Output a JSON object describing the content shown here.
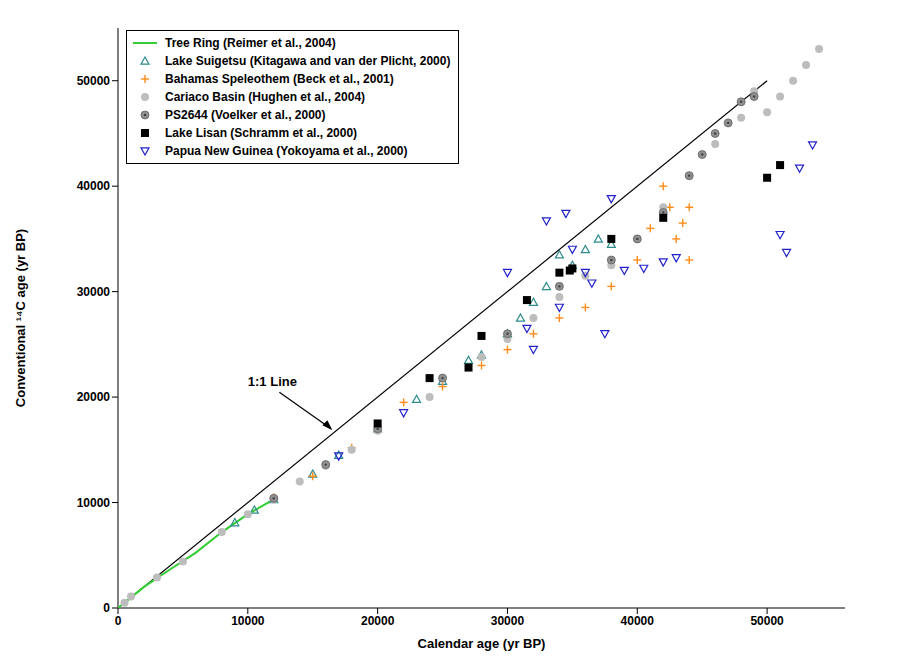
{
  "chart_data": {
    "type": "scatter",
    "x_label": "Calendar age (yr BP)",
    "y_label": "Conventional ¹⁴C age (yr BP)",
    "xlim": [
      0,
      56000
    ],
    "ylim": [
      0,
      55000
    ],
    "xticks": [
      0,
      10000,
      20000,
      30000,
      40000,
      50000
    ],
    "yticks": [
      0,
      10000,
      20000,
      30000,
      40000,
      50000
    ],
    "grid": false,
    "legend": "upper left",
    "reference_line": {
      "label": "1:1 Line",
      "x": [
        0,
        50000
      ],
      "y": [
        0,
        50000
      ],
      "color": "#000000"
    },
    "series": [
      {
        "name": "Tree Ring (Reimer et al., 2004)",
        "type": "line",
        "marker": "none",
        "color": "#33cc33",
        "x": [
          0,
          2000,
          4000,
          6000,
          8000,
          10000,
          12000
        ],
        "values": [
          0,
          2000,
          3650,
          5250,
          7200,
          8900,
          10300
        ]
      },
      {
        "name": "Lake Suigetsu (Kitagawa and van der Plicht, 2000)",
        "type": "scatter",
        "marker": "triangle",
        "color": "#2e8b8b",
        "x": [
          9000,
          10500,
          12000,
          15000,
          17000,
          20000,
          23000,
          25000,
          27000,
          28000,
          30000,
          31000,
          32000,
          33000,
          34000,
          35000,
          36000,
          37000,
          38000
        ],
        "values": [
          8100,
          9300,
          10300,
          12700,
          14500,
          17000,
          19800,
          21500,
          23500,
          24000,
          26000,
          27500,
          29000,
          30500,
          33500,
          32500,
          34000,
          35000,
          34500
        ]
      },
      {
        "name": "Bahamas Speleothem (Beck et al., 2001)",
        "type": "scatter",
        "marker": "plus",
        "color": "#ff8c1a",
        "x": [
          12000,
          15000,
          18000,
          22000,
          25000,
          28000,
          30000,
          32000,
          34000,
          36000,
          38000,
          40000,
          41000,
          42000,
          42500,
          43000,
          43500,
          44000,
          44000
        ],
        "values": [
          10500,
          12500,
          15200,
          19500,
          21000,
          23000,
          24500,
          26000,
          27500,
          28500,
          30500,
          33000,
          36000,
          40000,
          38000,
          35000,
          36500,
          38000,
          33000
        ]
      },
      {
        "name": "Cariaco Basin (Hughen et al., 2004)",
        "type": "scatter",
        "marker": "circle",
        "color": "#bdbdbd",
        "x": [
          500,
          1000,
          3000,
          5000,
          8000,
          10000,
          12000,
          14000,
          16000,
          18000,
          20000,
          24000,
          28000,
          30000,
          32000,
          34000,
          36000,
          38000,
          40000,
          42000,
          44000,
          46000,
          48000,
          49000,
          50000,
          51000,
          52000,
          53000,
          54000
        ],
        "values": [
          500,
          1100,
          2900,
          4400,
          7200,
          8900,
          10300,
          12000,
          13500,
          15000,
          16800,
          20000,
          23800,
          25500,
          27500,
          29500,
          31500,
          32500,
          35000,
          38000,
          41000,
          44000,
          46500,
          49000,
          47000,
          48500,
          50000,
          51500,
          53000
        ]
      },
      {
        "name": "PS2644 (Voelker et al., 2000)",
        "type": "scatter",
        "marker": "circle_dot",
        "color": "#909090",
        "x": [
          12000,
          16000,
          20000,
          25000,
          30000,
          34000,
          38000,
          40000,
          42000,
          44000,
          45000,
          46000,
          47000,
          48000,
          49000
        ],
        "values": [
          10400,
          13600,
          17000,
          21800,
          26000,
          30500,
          33000,
          35000,
          37500,
          41000,
          43000,
          45000,
          46000,
          48000,
          48500
        ]
      },
      {
        "name": "Lake Lisan (Schramm et al., 2000)",
        "type": "scatter",
        "marker": "square",
        "color": "#000000",
        "x": [
          20000,
          24000,
          27000,
          28000,
          31500,
          34000,
          34800,
          35000,
          38000,
          42000,
          50000,
          51000
        ],
        "values": [
          17500,
          21800,
          22800,
          25800,
          29200,
          31800,
          32000,
          32200,
          35000,
          37000,
          40800,
          42000
        ]
      },
      {
        "name": "Papua New Guinea (Yokoyama et al., 2000)",
        "type": "scatter",
        "marker": "triangle_down",
        "color": "#2222cc",
        "x": [
          17000,
          22000,
          30000,
          31500,
          32000,
          33000,
          34000,
          34500,
          35000,
          36000,
          36500,
          37500,
          38000,
          39000,
          40500,
          42000,
          43000,
          51000,
          51500,
          52500,
          53500
        ],
        "values": [
          14400,
          18500,
          31800,
          26500,
          24500,
          36700,
          28500,
          37400,
          34000,
          31800,
          30800,
          26000,
          38800,
          32000,
          32200,
          32800,
          33200,
          35400,
          33700,
          41700,
          43900
        ]
      }
    ]
  }
}
